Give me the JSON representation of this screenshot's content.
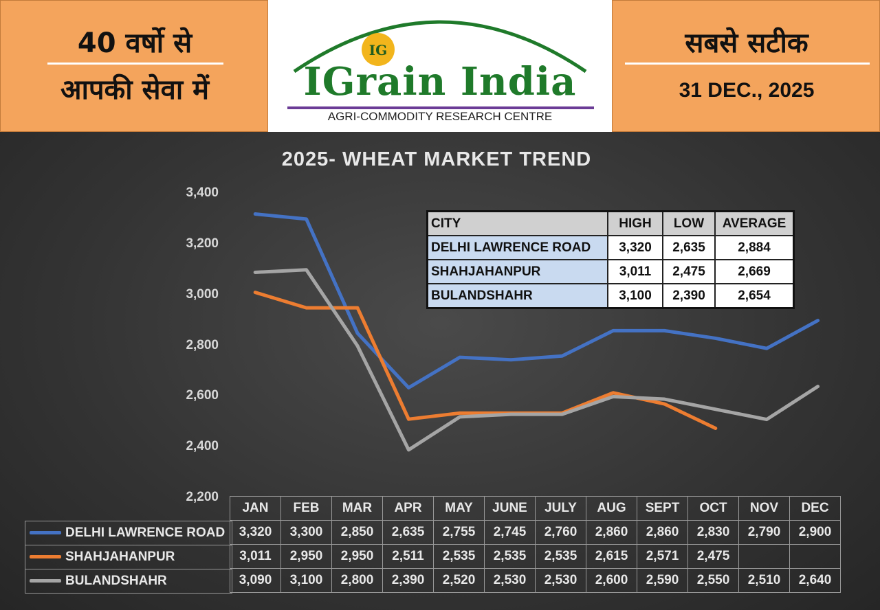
{
  "header": {
    "left_line1": "40 वर्षो से",
    "left_line2": "आपकी सेवा में",
    "right_line1": "सबसे सटीक",
    "date": "31 DEC., 2025",
    "brand": "IGrain India",
    "brand_tagline": "AGRI-COMMODITY RESEARCH CENTRE",
    "badge_text": "IG"
  },
  "colors": {
    "header_orange": "#f4a45c",
    "brand_green": "#1f7a2a",
    "delhi": "#4472c4",
    "shahjahanpur": "#ed7d31",
    "bulandshahr": "#a5a5a5"
  },
  "chart_data": {
    "type": "line",
    "title": "2025- WHEAT MARKET TREND",
    "categories": [
      "JAN",
      "FEB",
      "MAR",
      "APR",
      "MAY",
      "JUNE",
      "JULY",
      "AUG",
      "SEPT",
      "OCT",
      "NOV",
      "DEC"
    ],
    "ylim": [
      2200,
      3400
    ],
    "yticks": [
      "2,200",
      "2,400",
      "2,600",
      "2,800",
      "3,000",
      "3,200",
      "3,400"
    ],
    "grid": false,
    "legend": "bottom data table",
    "series": [
      {
        "name": "DELHI LAWRENCE ROAD",
        "color": "#4472c4",
        "values": [
          3320,
          3300,
          2850,
          2635,
          2755,
          2745,
          2760,
          2860,
          2860,
          2830,
          2790,
          2900
        ],
        "labels": [
          "3,320",
          "3,300",
          "2,850",
          "2,635",
          "2,755",
          "2,745",
          "2,760",
          "2,860",
          "2,860",
          "2,830",
          "2,790",
          "2,900"
        ]
      },
      {
        "name": "SHAHJAHANPUR",
        "color": "#ed7d31",
        "values": [
          3011,
          2950,
          2950,
          2511,
          2535,
          2535,
          2535,
          2615,
          2571,
          2475,
          null,
          null
        ],
        "labels": [
          "3,011",
          "2,950",
          "2,950",
          "2,511",
          "2,535",
          "2,535",
          "2,535",
          "2,615",
          "2,571",
          "2,475",
          "",
          ""
        ]
      },
      {
        "name": "BULANDSHAHR",
        "color": "#a5a5a5",
        "values": [
          3090,
          3100,
          2800,
          2390,
          2520,
          2530,
          2530,
          2600,
          2590,
          2550,
          2510,
          2640
        ],
        "labels": [
          "3,090",
          "3,100",
          "2,800",
          "2,390",
          "2,520",
          "2,530",
          "2,530",
          "2,600",
          "2,590",
          "2,550",
          "2,510",
          "2,640"
        ]
      }
    ]
  },
  "summary_table": {
    "headers": [
      "CITY",
      "HIGH",
      "LOW",
      "AVERAGE"
    ],
    "rows": [
      [
        "DELHI LAWRENCE ROAD",
        "3,320",
        "2,635",
        "2,884"
      ],
      [
        "SHAHJAHANPUR",
        "3,011",
        "2,475",
        "2,669"
      ],
      [
        "BULANDSHAHR",
        "3,100",
        "2,390",
        "2,654"
      ]
    ]
  }
}
